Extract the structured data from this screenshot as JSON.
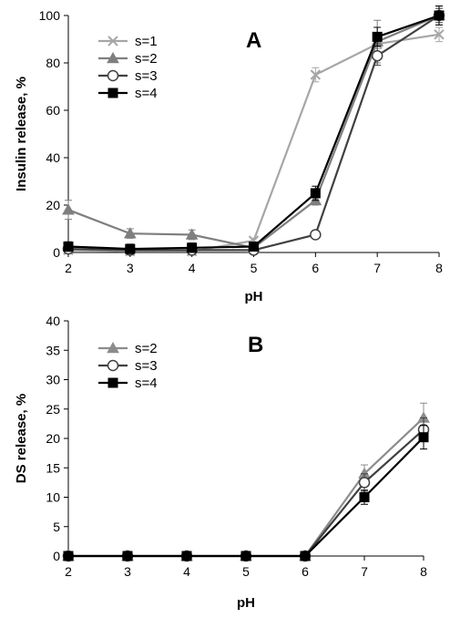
{
  "chart_data": [
    {
      "type": "line",
      "panel_label": "A",
      "xlabel": "pH",
      "ylabel": "Insulin release, %",
      "xlim": [
        2,
        8
      ],
      "ylim": [
        0,
        100
      ],
      "x_ticks": [
        2,
        3,
        4,
        5,
        6,
        7,
        8
      ],
      "y_ticks": [
        0,
        20,
        40,
        60,
        80,
        100
      ],
      "grid": false,
      "legend_position": "top-left",
      "x": [
        2,
        3,
        4,
        5,
        6,
        7,
        8
      ],
      "series": [
        {
          "name": "s=1",
          "marker": "x",
          "color": "#a6a6a6",
          "values": [
            1,
            0.5,
            0.5,
            5,
            75,
            88,
            92
          ],
          "errors": [
            0.5,
            0.5,
            0.5,
            1,
            3,
            2,
            3
          ]
        },
        {
          "name": "s=2",
          "marker": "triangle",
          "color": "#7f7f7f",
          "values": [
            18,
            8,
            7.5,
            2,
            22,
            89,
            100
          ],
          "errors": [
            4,
            2,
            2,
            1,
            2,
            9,
            4
          ]
        },
        {
          "name": "s=3",
          "marker": "circle",
          "color": "#404040",
          "values": [
            1.5,
            1,
            1,
            1,
            7.5,
            83,
            100
          ],
          "errors": [
            1,
            1,
            1,
            1,
            1,
            4,
            3
          ]
        },
        {
          "name": "s=4",
          "marker": "square",
          "color": "#000000",
          "values": [
            2.5,
            1.5,
            2,
            2.5,
            25,
            91,
            100
          ],
          "errors": [
            2,
            2,
            2,
            1,
            3,
            4,
            4
          ]
        }
      ]
    },
    {
      "type": "line",
      "panel_label": "B",
      "xlabel": "pH",
      "ylabel": "DS release, %",
      "xlim": [
        2,
        8
      ],
      "ylim": [
        0,
        40
      ],
      "x_ticks": [
        2,
        3,
        4,
        5,
        6,
        7,
        8
      ],
      "y_ticks": [
        0,
        5,
        10,
        15,
        20,
        25,
        30,
        35,
        40
      ],
      "grid": false,
      "legend_position": "top-left",
      "x": [
        2,
        3,
        4,
        5,
        6,
        7,
        8
      ],
      "series": [
        {
          "name": "s=2",
          "marker": "triangle",
          "color": "#8c8c8c",
          "values": [
            0,
            0,
            0,
            0,
            0,
            14,
            23.5
          ],
          "errors": [
            0.4,
            0.4,
            0.4,
            0.4,
            0.4,
            1.5,
            2.5
          ]
        },
        {
          "name": "s=3",
          "marker": "circle",
          "color": "#404040",
          "values": [
            0,
            0,
            0,
            0,
            0,
            12.5,
            21.5
          ],
          "errors": [
            0.4,
            0.4,
            0.4,
            0.4,
            0.4,
            1.5,
            2
          ]
        },
        {
          "name": "s=4",
          "marker": "square",
          "color": "#000000",
          "values": [
            0,
            0,
            0,
            0,
            0,
            10,
            20.2
          ],
          "errors": [
            0.4,
            0.4,
            0.4,
            0.4,
            0.4,
            1.2,
            2
          ]
        }
      ]
    }
  ]
}
